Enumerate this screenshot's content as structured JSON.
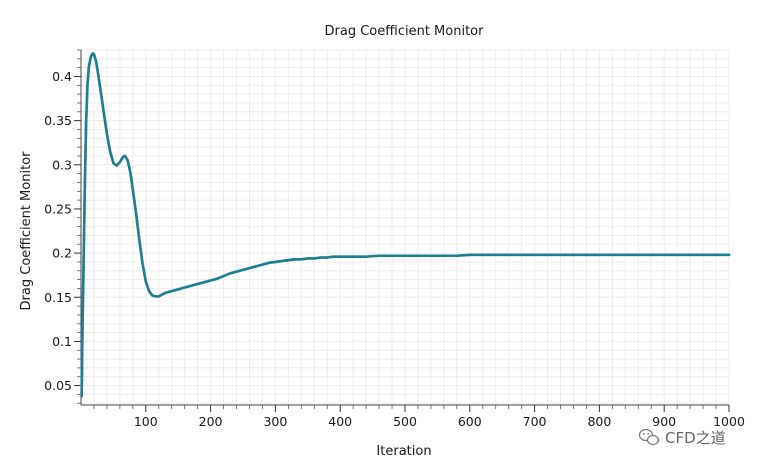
{
  "chart_data": {
    "type": "line",
    "title": "Drag Coefficient Monitor",
    "xlabel": "Iteration",
    "ylabel": "Drag Coefficient Monitor",
    "xlim": [
      0,
      1000
    ],
    "ylim": [
      0.028,
      0.43
    ],
    "x_ticks": [
      100,
      200,
      300,
      400,
      500,
      600,
      700,
      800,
      900,
      1000
    ],
    "y_ticks": [
      0.05,
      0.1,
      0.15,
      0.2,
      0.25,
      0.3,
      0.35,
      0.4
    ],
    "y_tick_labels": [
      "0.05",
      "0.1",
      "0.15",
      "0.2",
      "0.25",
      "0.3",
      "0.35",
      "0.4"
    ],
    "grid": true,
    "legend": "none",
    "colors": {
      "line": "#1c7f92",
      "line_shadow": "#2a6b76",
      "axis": "#444444",
      "grid": "#ececec"
    },
    "series": [
      {
        "color": "#1c7f92",
        "x": [
          1,
          2,
          4,
          6,
          8,
          10,
          12,
          15,
          18,
          20,
          23,
          26,
          30,
          35,
          40,
          45,
          50,
          55,
          60,
          65,
          68,
          72,
          76,
          80,
          85,
          90,
          95,
          100,
          105,
          110,
          115,
          120,
          125,
          130,
          140,
          150,
          160,
          170,
          180,
          190,
          200,
          210,
          220,
          230,
          240,
          250,
          260,
          270,
          280,
          290,
          300,
          310,
          320,
          330,
          340,
          350,
          360,
          370,
          380,
          390,
          400,
          420,
          440,
          460,
          480,
          500,
          520,
          540,
          560,
          580,
          600,
          650,
          700,
          750,
          800,
          850,
          900,
          950,
          1000
        ],
        "y": [
          0.038,
          0.1,
          0.19,
          0.28,
          0.35,
          0.39,
          0.41,
          0.422,
          0.426,
          0.425,
          0.418,
          0.405,
          0.385,
          0.36,
          0.335,
          0.315,
          0.302,
          0.299,
          0.303,
          0.309,
          0.31,
          0.305,
          0.292,
          0.272,
          0.245,
          0.215,
          0.188,
          0.168,
          0.157,
          0.152,
          0.151,
          0.151,
          0.153,
          0.155,
          0.157,
          0.159,
          0.161,
          0.163,
          0.165,
          0.167,
          0.169,
          0.171,
          0.174,
          0.177,
          0.179,
          0.181,
          0.183,
          0.185,
          0.187,
          0.189,
          0.19,
          0.191,
          0.192,
          0.193,
          0.193,
          0.194,
          0.194,
          0.195,
          0.195,
          0.196,
          0.196,
          0.196,
          0.196,
          0.197,
          0.197,
          0.197,
          0.197,
          0.197,
          0.197,
          0.197,
          0.198,
          0.198,
          0.198,
          0.198,
          0.198,
          0.198,
          0.198,
          0.198,
          0.198
        ]
      }
    ]
  },
  "watermark": {
    "text": "CFD之道",
    "icon": "wechat-icon"
  }
}
